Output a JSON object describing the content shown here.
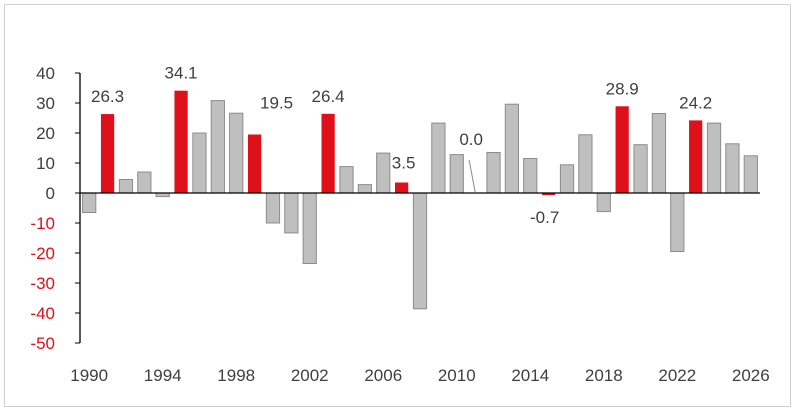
{
  "chart_data": {
    "type": "bar",
    "title": "",
    "xlabel": "",
    "ylabel": "",
    "ylim": [
      -50,
      40
    ],
    "yticks": [
      40,
      30,
      20,
      10,
      0,
      -10,
      -20,
      -30,
      -40,
      -50
    ],
    "x_tick_labels": [
      "1990",
      "1994",
      "1998",
      "2002",
      "2006",
      "2010",
      "2014",
      "2018",
      "2022",
      "2026"
    ],
    "grid": false,
    "colors": {
      "highlight": "#e0101a",
      "normal": "#bfbfbf",
      "normal_edge": "#8c8c8c",
      "positive_tick_text": "#404040",
      "negative_tick_text": "#e0101a",
      "label_text": "#404040"
    },
    "categories": [
      1990,
      1991,
      1992,
      1993,
      1994,
      1995,
      1996,
      1997,
      1998,
      1999,
      2000,
      2001,
      2002,
      2003,
      2004,
      2005,
      2006,
      2007,
      2008,
      2009,
      2010,
      2011,
      2012,
      2013,
      2014,
      2015,
      2016,
      2017,
      2018,
      2019,
      2020,
      2021,
      2022,
      2023,
      2024,
      2025,
      2026
    ],
    "values": [
      -6.5,
      26.3,
      4.5,
      7.0,
      -1.2,
      34.1,
      20.0,
      30.8,
      26.6,
      19.5,
      -10.0,
      -13.3,
      -23.5,
      26.4,
      8.8,
      2.8,
      13.3,
      3.5,
      -38.6,
      23.3,
      12.8,
      0.0,
      13.5,
      29.6,
      11.5,
      -0.7,
      9.4,
      19.4,
      -6.2,
      28.9,
      16.1,
      26.5,
      -19.5,
      24.2,
      23.3,
      16.4,
      12.4
    ],
    "highlighted": [
      1991,
      1995,
      1999,
      2003,
      2007,
      2011,
      2015,
      2019,
      2023
    ],
    "data_labels": [
      {
        "year": 1991,
        "text": "26.3"
      },
      {
        "year": 1995,
        "text": "34.1"
      },
      {
        "year": 1999,
        "text": "19.5"
      },
      {
        "year": 2003,
        "text": "26.4"
      },
      {
        "year": 2007,
        "text": "3.5"
      },
      {
        "year": 2011,
        "text": "0.0"
      },
      {
        "year": 2015,
        "text": "-0.7"
      },
      {
        "year": 2019,
        "text": "28.9"
      },
      {
        "year": 2023,
        "text": "24.2"
      }
    ]
  }
}
